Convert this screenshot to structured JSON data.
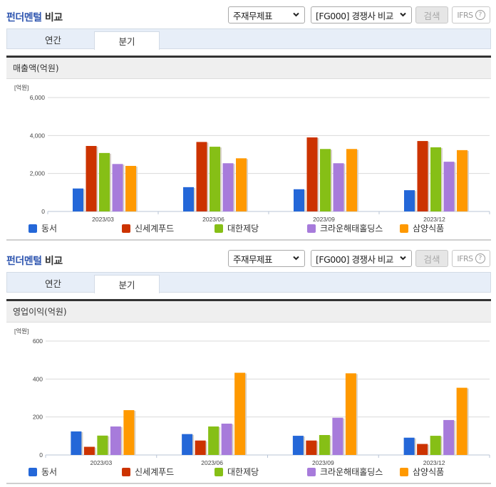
{
  "sections": [
    {
      "title_accent": "펀더멘털",
      "title_rest": " 비교",
      "statement_select": "주재무제표",
      "compare_select": "[FG000] 경쟁사 비교",
      "search_label": "검색",
      "ifrs_label": "IFRS",
      "help_glyph": "?",
      "tabs": [
        {
          "label": "연간",
          "active": false
        },
        {
          "label": "분기",
          "active": true
        }
      ],
      "metric_title": "매출액(억원)",
      "unit": "[억원]"
    },
    {
      "title_accent": "펀더멘털",
      "title_rest": " 비교",
      "statement_select": "주재무제표",
      "compare_select": "[FG000] 경쟁사 비교",
      "search_label": "검색",
      "ifrs_label": "IFRS",
      "help_glyph": "?",
      "tabs": [
        {
          "label": "연간",
          "active": false
        },
        {
          "label": "분기",
          "active": true
        }
      ],
      "metric_title": "영업이익(억원)",
      "unit": "[억원]"
    }
  ],
  "legend": [
    {
      "name": "동서",
      "color": "#2467d8"
    },
    {
      "name": "신세계푸드",
      "color": "#cc3300"
    },
    {
      "name": "대한제당",
      "color": "#86bf16"
    },
    {
      "name": "크라운해태홀딩스",
      "color": "#a77bdb"
    },
    {
      "name": "삼양식품",
      "color": "#ff9900"
    }
  ],
  "chart_data": [
    {
      "type": "bar",
      "title": "매출액(억원)",
      "xlabel": "",
      "ylabel": "[억원]",
      "ylim": [
        0,
        6000
      ],
      "yticks": [
        0,
        2000,
        4000,
        6000
      ],
      "ytick_labels": [
        "0",
        "2,000",
        "4,000",
        "6,000"
      ],
      "grid": true,
      "legend_position": "bottom",
      "categories": [
        "2023/03",
        "2023/06",
        "2023/09",
        "2023/12"
      ],
      "series": [
        {
          "name": "동서",
          "values": [
            1210,
            1280,
            1170,
            1120
          ]
        },
        {
          "name": "신세계푸드",
          "values": [
            3450,
            3660,
            3900,
            3710
          ]
        },
        {
          "name": "대한제당",
          "values": [
            3080,
            3410,
            3290,
            3380
          ]
        },
        {
          "name": "크라운해태홀딩스",
          "values": [
            2500,
            2540,
            2540,
            2620
          ]
        },
        {
          "name": "삼양식품",
          "values": [
            2400,
            2800,
            3290,
            3230
          ]
        }
      ]
    },
    {
      "type": "bar",
      "title": "영업이익(억원)",
      "xlabel": "",
      "ylabel": "[억원]",
      "ylim": [
        0,
        600
      ],
      "yticks": [
        0,
        200,
        400,
        600
      ],
      "ytick_labels": [
        "0",
        "200",
        "400",
        "600"
      ],
      "grid": true,
      "legend_position": "bottom",
      "categories": [
        "2023/03",
        "2023/06",
        "2023/09",
        "2023/12"
      ],
      "series": [
        {
          "name": "동서",
          "values": [
            124,
            110,
            101,
            91
          ]
        },
        {
          "name": "신세계푸드",
          "values": [
            43,
            76,
            76,
            58
          ]
        },
        {
          "name": "대한제당",
          "values": [
            102,
            150,
            105,
            101
          ]
        },
        {
          "name": "크라운해태홀딩스",
          "values": [
            150,
            165,
            196,
            184
          ]
        },
        {
          "name": "삼양식품",
          "values": [
            236,
            433,
            430,
            354
          ]
        }
      ]
    }
  ]
}
